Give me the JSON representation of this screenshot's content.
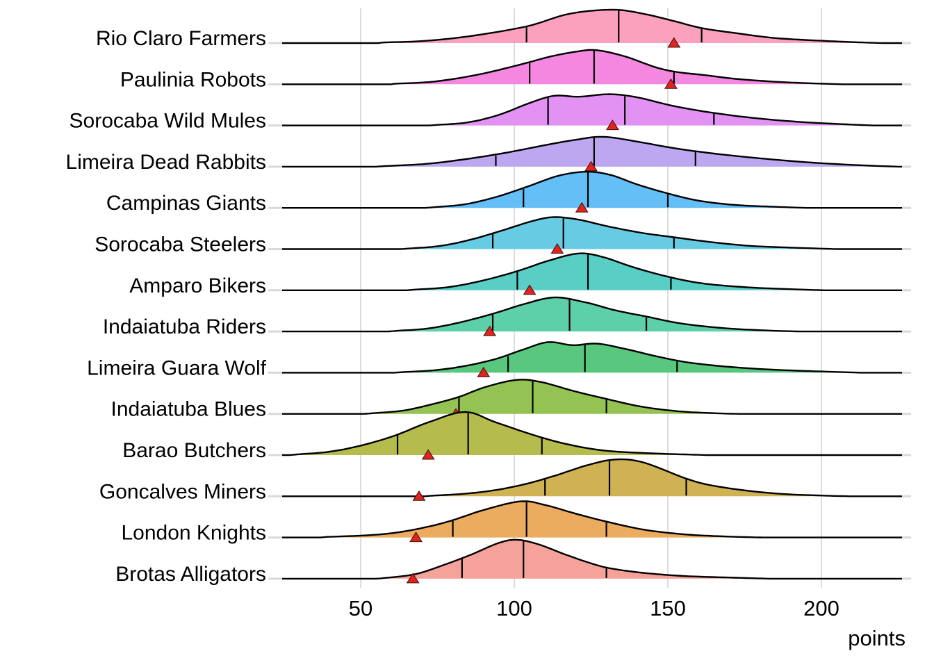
{
  "chart_data": {
    "type": "area",
    "subtype": "ridgeline-density",
    "title": "",
    "xlabel": "points",
    "ylabel": "",
    "x_axis": {
      "ticks": [
        50,
        100,
        150,
        200
      ],
      "range": [
        24,
        226
      ],
      "grid": true
    },
    "grid_color": "#DCDCDC",
    "axis_stub_color": "#D9D9D9",
    "curve_stroke_color": "#000000",
    "marker": {
      "shape": "triangle-up",
      "fill": "#E02420",
      "stroke": "#3F0E08"
    },
    "series": [
      {
        "label": "Rio Claro Farmers",
        "fill": "#FBA1BE",
        "quartiles": [
          104,
          134,
          161
        ],
        "marker_value": 152,
        "peak": 48,
        "density": [
          [
            56,
            0
          ],
          [
            58,
            0.02
          ],
          [
            70,
            0.06
          ],
          [
            85,
            0.2
          ],
          [
            104,
            0.5
          ],
          [
            118,
            0.88
          ],
          [
            132,
            1
          ],
          [
            142,
            0.88
          ],
          [
            152,
            0.66
          ],
          [
            161,
            0.45
          ],
          [
            172,
            0.3
          ],
          [
            185,
            0.15
          ],
          [
            200,
            0.07
          ],
          [
            210,
            0.03
          ],
          [
            216,
            0.01
          ],
          [
            220,
            0
          ]
        ]
      },
      {
        "label": "Paulinia Robots",
        "fill": "#F487DF",
        "quartiles": [
          105,
          126,
          152
        ],
        "marker_value": 151,
        "peak": 49,
        "density": [
          [
            60,
            0
          ],
          [
            62,
            0.02
          ],
          [
            74,
            0.08
          ],
          [
            88,
            0.28
          ],
          [
            102,
            0.58
          ],
          [
            112,
            0.82
          ],
          [
            121,
            0.97
          ],
          [
            127,
            1
          ],
          [
            136,
            0.82
          ],
          [
            146,
            0.5
          ],
          [
            153,
            0.36
          ],
          [
            162,
            0.27
          ],
          [
            172,
            0.16
          ],
          [
            184,
            0.08
          ],
          [
            196,
            0.03
          ],
          [
            207,
            0
          ]
        ]
      },
      {
        "label": "Sorocaba Wild Mules",
        "fill": "#E292F2",
        "quartiles": [
          111,
          136,
          165
        ],
        "marker_value": 132,
        "peak": 45,
        "density": [
          [
            72,
            0
          ],
          [
            75,
            0.02
          ],
          [
            85,
            0.1
          ],
          [
            95,
            0.34
          ],
          [
            105,
            0.72
          ],
          [
            113,
            0.95
          ],
          [
            121,
            0.92
          ],
          [
            131,
            1
          ],
          [
            140,
            0.9
          ],
          [
            152,
            0.62
          ],
          [
            165,
            0.4
          ],
          [
            178,
            0.24
          ],
          [
            192,
            0.12
          ],
          [
            205,
            0.05
          ],
          [
            217,
            0
          ]
        ]
      },
      {
        "label": "Limeira Dead Rabbits",
        "fill": "#BDA7F0",
        "quartiles": [
          94,
          126,
          159
        ],
        "marker_value": 125,
        "peak": 43,
        "density": [
          [
            55,
            0
          ],
          [
            58,
            0.02
          ],
          [
            72,
            0.1
          ],
          [
            86,
            0.28
          ],
          [
            98,
            0.48
          ],
          [
            110,
            0.72
          ],
          [
            120,
            0.9
          ],
          [
            129,
            1
          ],
          [
            140,
            0.84
          ],
          [
            152,
            0.62
          ],
          [
            165,
            0.44
          ],
          [
            180,
            0.28
          ],
          [
            195,
            0.15
          ],
          [
            210,
            0.06
          ],
          [
            225,
            0
          ]
        ]
      },
      {
        "label": "Campinas Giants",
        "fill": "#63BFF5",
        "quartiles": [
          103,
          124,
          150
        ],
        "marker_value": 122,
        "peak": 52,
        "density": [
          [
            71,
            0
          ],
          [
            74,
            0.02
          ],
          [
            84,
            0.1
          ],
          [
            94,
            0.3
          ],
          [
            104,
            0.58
          ],
          [
            114,
            0.88
          ],
          [
            123,
            1
          ],
          [
            131,
            0.92
          ],
          [
            140,
            0.65
          ],
          [
            150,
            0.4
          ],
          [
            160,
            0.2
          ],
          [
            172,
            0.08
          ],
          [
            185,
            0.03
          ],
          [
            195,
            0
          ]
        ]
      },
      {
        "label": "Sorocaba Steelers",
        "fill": "#68CBE4",
        "quartiles": [
          93,
          116,
          152
        ],
        "marker_value": 114,
        "peak": 46,
        "density": [
          [
            63,
            0
          ],
          [
            66,
            0.02
          ],
          [
            76,
            0.1
          ],
          [
            86,
            0.3
          ],
          [
            96,
            0.58
          ],
          [
            106,
            0.88
          ],
          [
            113,
            1
          ],
          [
            121,
            0.92
          ],
          [
            131,
            0.7
          ],
          [
            142,
            0.5
          ],
          [
            152,
            0.37
          ],
          [
            164,
            0.22
          ],
          [
            177,
            0.1
          ],
          [
            192,
            0.04
          ],
          [
            205,
            0
          ]
        ]
      },
      {
        "label": "Amparo Bikers",
        "fill": "#58CEC5",
        "quartiles": [
          101,
          124,
          151
        ],
        "marker_value": 105,
        "peak": 53,
        "density": [
          [
            65,
            0
          ],
          [
            68,
            0.02
          ],
          [
            79,
            0.09
          ],
          [
            90,
            0.27
          ],
          [
            101,
            0.52
          ],
          [
            111,
            0.8
          ],
          [
            121,
            1
          ],
          [
            129,
            0.9
          ],
          [
            139,
            0.62
          ],
          [
            151,
            0.35
          ],
          [
            162,
            0.18
          ],
          [
            176,
            0.08
          ],
          [
            190,
            0.03
          ],
          [
            201,
            0
          ]
        ]
      },
      {
        "label": "Indaiatuba Riders",
        "fill": "#5DD0A9",
        "quartiles": [
          93,
          118,
          143
        ],
        "marker_value": 92,
        "peak": 49,
        "density": [
          [
            59,
            0
          ],
          [
            62,
            0.02
          ],
          [
            72,
            0.09
          ],
          [
            82,
            0.26
          ],
          [
            93,
            0.52
          ],
          [
            103,
            0.8
          ],
          [
            113,
            1
          ],
          [
            123,
            0.86
          ],
          [
            133,
            0.62
          ],
          [
            143,
            0.44
          ],
          [
            154,
            0.24
          ],
          [
            168,
            0.1
          ],
          [
            182,
            0.03
          ],
          [
            193,
            0
          ]
        ]
      },
      {
        "label": "Limeira Guara Wolf",
        "fill": "#5AC77F",
        "quartiles": [
          98,
          123,
          153
        ],
        "marker_value": 90,
        "peak": 44,
        "density": [
          [
            61,
            0
          ],
          [
            64,
            0.02
          ],
          [
            74,
            0.08
          ],
          [
            84,
            0.22
          ],
          [
            94,
            0.45
          ],
          [
            103,
            0.76
          ],
          [
            111,
            1
          ],
          [
            119,
            0.9
          ],
          [
            127,
            0.95
          ],
          [
            136,
            0.78
          ],
          [
            147,
            0.52
          ],
          [
            157,
            0.33
          ],
          [
            170,
            0.19
          ],
          [
            184,
            0.1
          ],
          [
            200,
            0.04
          ],
          [
            213,
            0
          ]
        ]
      },
      {
        "label": "Indaiatuba Blues",
        "fill": "#95C353",
        "quartiles": [
          82,
          106,
          130
        ],
        "marker_value": 81,
        "peak": 49,
        "density": [
          [
            51,
            0
          ],
          [
            54,
            0.02
          ],
          [
            64,
            0.1
          ],
          [
            74,
            0.3
          ],
          [
            82,
            0.5
          ],
          [
            91,
            0.8
          ],
          [
            101,
            1
          ],
          [
            109,
            0.93
          ],
          [
            119,
            0.68
          ],
          [
            130,
            0.44
          ],
          [
            141,
            0.22
          ],
          [
            153,
            0.08
          ],
          [
            165,
            0.02
          ],
          [
            173,
            0
          ]
        ]
      },
      {
        "label": "Barao Butchers",
        "fill": "#B5BB4D",
        "quartiles": [
          62,
          85,
          109
        ],
        "marker_value": 72,
        "peak": 62,
        "density": [
          [
            27,
            0
          ],
          [
            30,
            0.02
          ],
          [
            40,
            0.08
          ],
          [
            50,
            0.22
          ],
          [
            61,
            0.45
          ],
          [
            72,
            0.76
          ],
          [
            84,
            1
          ],
          [
            94,
            0.76
          ],
          [
            107,
            0.45
          ],
          [
            118,
            0.24
          ],
          [
            130,
            0.1
          ],
          [
            145,
            0.04
          ],
          [
            158,
            0.01
          ],
          [
            163,
            0
          ]
        ]
      },
      {
        "label": "Goncalves Miners",
        "fill": "#CFB254",
        "quartiles": [
          110,
          131,
          156
        ],
        "marker_value": 69,
        "peak": 53,
        "density": [
          [
            71,
            0
          ],
          [
            74,
            0.02
          ],
          [
            84,
            0.07
          ],
          [
            94,
            0.17
          ],
          [
            104,
            0.34
          ],
          [
            114,
            0.58
          ],
          [
            124,
            0.85
          ],
          [
            133,
            1
          ],
          [
            142,
            0.92
          ],
          [
            156,
            0.48
          ],
          [
            164,
            0.3
          ],
          [
            176,
            0.15
          ],
          [
            188,
            0.06
          ],
          [
            200,
            0.02
          ],
          [
            209,
            0
          ]
        ]
      },
      {
        "label": "London Knights",
        "fill": "#EBAC60",
        "quartiles": [
          80,
          104,
          130
        ],
        "marker_value": 68,
        "peak": 52,
        "density": [
          [
            37,
            0
          ],
          [
            40,
            0.02
          ],
          [
            52,
            0.06
          ],
          [
            62,
            0.14
          ],
          [
            72,
            0.3
          ],
          [
            80,
            0.48
          ],
          [
            90,
            0.76
          ],
          [
            102,
            1
          ],
          [
            110,
            0.9
          ],
          [
            120,
            0.66
          ],
          [
            130,
            0.44
          ],
          [
            142,
            0.22
          ],
          [
            155,
            0.09
          ],
          [
            168,
            0.03
          ],
          [
            181,
            0
          ]
        ]
      },
      {
        "label": "Brotas Alligators",
        "fill": "#F5A29B",
        "quartiles": [
          83,
          103,
          130
        ],
        "marker_value": 67,
        "peak": 56,
        "density": [
          [
            55,
            0
          ],
          [
            58,
            0.02
          ],
          [
            68,
            0.12
          ],
          [
            78,
            0.38
          ],
          [
            86,
            0.62
          ],
          [
            95,
            0.92
          ],
          [
            101,
            1
          ],
          [
            108,
            0.88
          ],
          [
            116,
            0.64
          ],
          [
            124,
            0.42
          ],
          [
            131,
            0.27
          ],
          [
            142,
            0.15
          ],
          [
            155,
            0.07
          ],
          [
            170,
            0.03
          ],
          [
            183,
            0
          ]
        ]
      }
    ]
  }
}
